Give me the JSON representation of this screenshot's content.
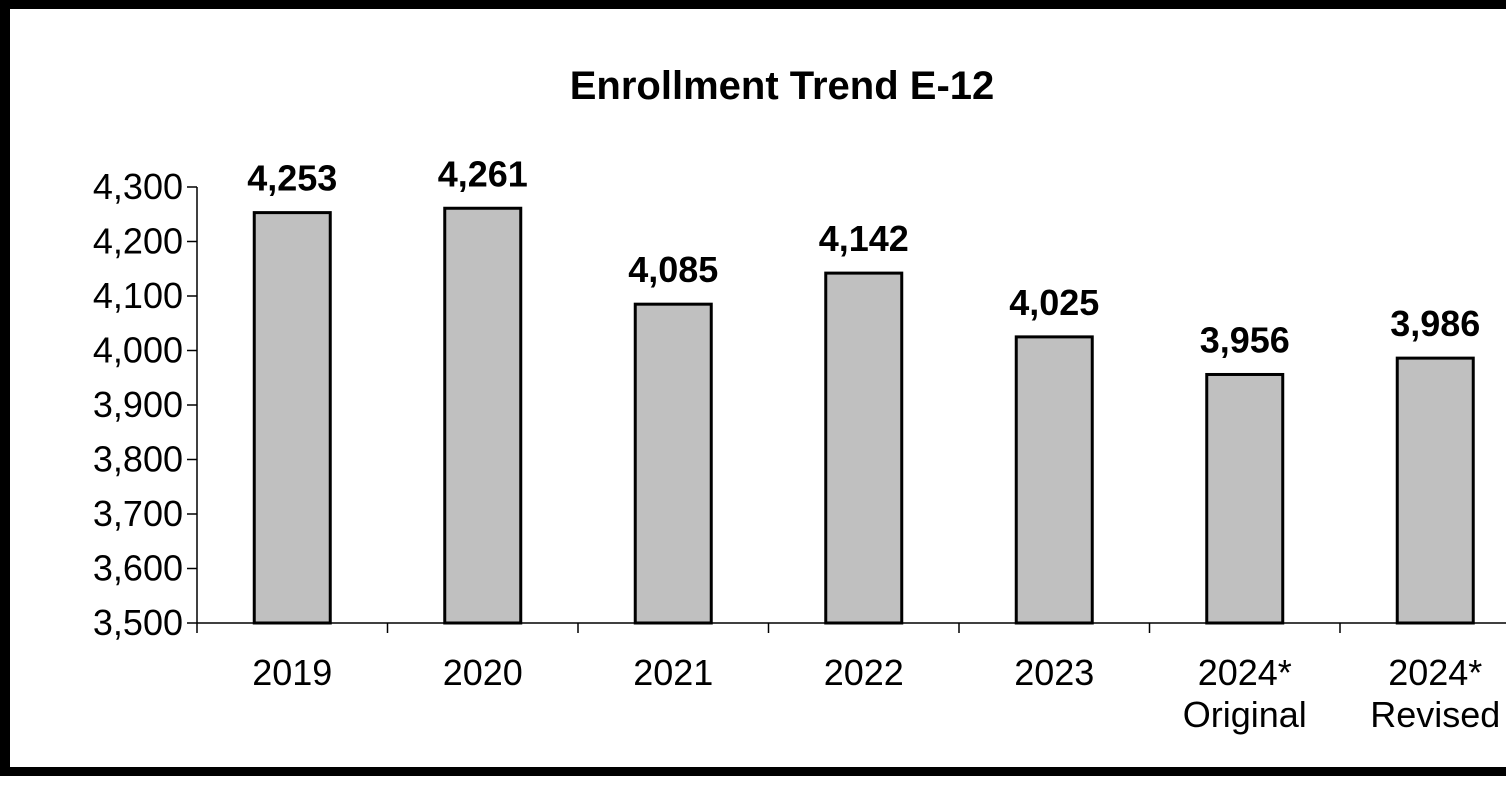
{
  "chart_data": {
    "type": "bar",
    "title": "Enrollment Trend E-12",
    "categories": [
      [
        "2019"
      ],
      [
        "2020"
      ],
      [
        "2021"
      ],
      [
        "2022"
      ],
      [
        "2023"
      ],
      [
        "2024*",
        "Original"
      ],
      [
        "2024*",
        "Revised"
      ]
    ],
    "values": [
      4253,
      4261,
      4085,
      4142,
      4025,
      3956,
      3986
    ],
    "data_labels": [
      "4,253",
      "4,261",
      "4,085",
      "4,142",
      "4,025",
      "3,956",
      "3,986"
    ],
    "ylim": [
      3500,
      4300
    ],
    "yticks": [
      3500,
      3600,
      3700,
      3800,
      3900,
      4000,
      4100,
      4200,
      4300
    ],
    "ytick_labels": [
      "3,500",
      "3,600",
      "3,700",
      "3,800",
      "3,900",
      "4,000",
      "4,100",
      "4,200",
      "4,300"
    ],
    "bar_color": "#c0c0c0",
    "grid": false,
    "legend": "none"
  }
}
